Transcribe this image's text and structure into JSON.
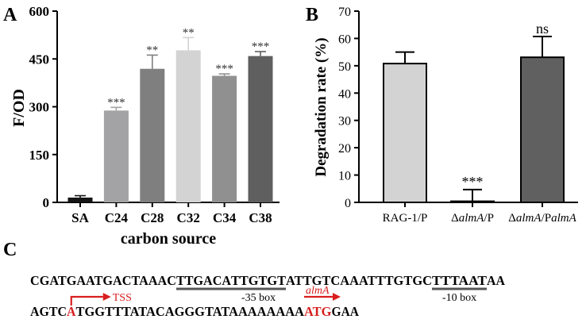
{
  "panels": {
    "a": "A",
    "b": "B",
    "c": "C"
  },
  "colors": {
    "red": "#d81e1e",
    "box_line": "#555555"
  },
  "chart_data": [
    {
      "type": "bar",
      "title": "",
      "xlabel": "carbon source",
      "ylabel": "F/OD",
      "ylim": [
        0,
        600
      ],
      "yticks": [
        0,
        150,
        300,
        450,
        600
      ],
      "categories": [
        "SA",
        "C24",
        "C28",
        "C32",
        "C34",
        "C38"
      ],
      "values": [
        15,
        288,
        419,
        477,
        397,
        459
      ],
      "errors": [
        6,
        10,
        43,
        40,
        6,
        14
      ],
      "significance": [
        "",
        "***",
        "**",
        "**",
        "***",
        "***"
      ],
      "bar_colors": [
        "#141414",
        "#a3a3a6",
        "#7f7f7f",
        "#d3d3d3",
        "#909090",
        "#5f5f5f"
      ]
    },
    {
      "type": "bar",
      "title": "",
      "xlabel": "",
      "ylabel": "Degradation rate (%)",
      "ylim": [
        0,
        70
      ],
      "yticks": [
        0,
        10,
        20,
        30,
        40,
        50,
        60,
        70
      ],
      "categories": [
        [
          {
            "t": "RAG-1/P"
          }
        ],
        [
          {
            "t": "Δ"
          },
          {
            "t": "almA",
            "i": true
          },
          {
            "t": "/P"
          }
        ],
        [
          {
            "t": "Δ"
          },
          {
            "t": "almA",
            "i": true
          },
          {
            "t": "/P"
          },
          {
            "t": "almA",
            "i": true
          }
        ]
      ],
      "values": [
        50.8,
        0.4,
        53.1
      ],
      "errors": [
        4.2,
        4.3,
        7.6
      ],
      "significance": [
        "",
        "***",
        "ns"
      ],
      "bar_colors": [
        "#d3d3d3",
        "#d3d3d3",
        "#606060"
      ]
    }
  ],
  "sequence": {
    "line1": [
      {
        "t": "CGATGAATGACTAAAC"
      },
      {
        "t": "TTGACA",
        "u": true
      },
      {
        "t": "TTGTGT",
        "u": true
      },
      {
        "t": "ATTGTCAAATTTGTGC"
      },
      {
        "t": "TTTAAT",
        "u": true
      },
      {
        "t": "AA"
      }
    ],
    "line2": [
      {
        "t": "AGTC"
      },
      {
        "t": "A",
        "red": true
      },
      {
        "t": "TGGTTTATACAGGGTATAAAAAAAA"
      },
      {
        "t": "ATG",
        "red": true
      },
      {
        "t": "GAA"
      }
    ],
    "box35": "-35 box",
    "box10": "-10 box",
    "tss": "TSS",
    "gene": "almA"
  }
}
